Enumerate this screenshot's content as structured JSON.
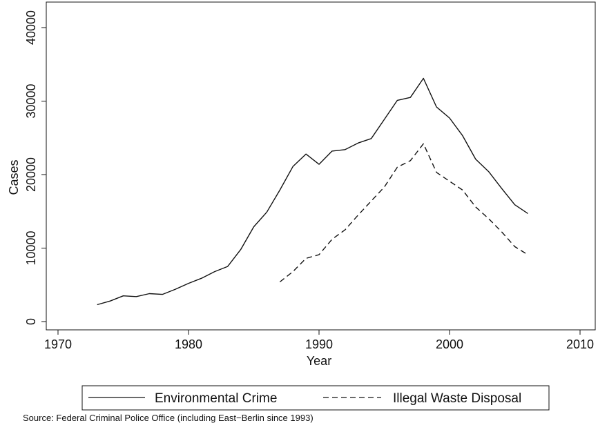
{
  "chart_data": {
    "type": "line",
    "title": "",
    "xlabel": "Year",
    "ylabel": "Cases",
    "xlim": [
      1970,
      2010
    ],
    "ylim": [
      0,
      40000
    ],
    "x_ticks": [
      1970,
      1980,
      1990,
      2000,
      2010
    ],
    "y_ticks": [
      0,
      10000,
      20000,
      30000,
      40000
    ],
    "grid": false,
    "legend_position": "bottom",
    "series": [
      {
        "name": "Environmental Crime",
        "style": "solid",
        "color": "#111111",
        "x": [
          1973,
          1974,
          1975,
          1976,
          1977,
          1978,
          1979,
          1980,
          1981,
          1982,
          1983,
          1984,
          1985,
          1986,
          1987,
          1988,
          1989,
          1990,
          1991,
          1992,
          1993,
          1994,
          1995,
          1996,
          1997,
          1998,
          1999,
          2000,
          2001,
          2002,
          2003,
          2004,
          2005,
          2006
        ],
        "values": [
          2300,
          2800,
          3500,
          3400,
          3800,
          3700,
          4400,
          5200,
          5900,
          6800,
          7500,
          9800,
          12900,
          14900,
          17900,
          21100,
          22800,
          21400,
          23200,
          23400,
          24300,
          24900,
          27500,
          30100,
          30500,
          33100,
          29200,
          27700,
          25300,
          22100,
          20400,
          18100,
          15900,
          14700
        ]
      },
      {
        "name": "Illegal Waste Disposal",
        "style": "dashed",
        "color": "#111111",
        "x": [
          1987,
          1988,
          1989,
          1990,
          1991,
          1992,
          1993,
          1994,
          1995,
          1996,
          1997,
          1998,
          1999,
          2000,
          2001,
          2002,
          2003,
          2004,
          2005,
          2006
        ],
        "values": [
          5400,
          6800,
          8600,
          9100,
          11200,
          12500,
          14500,
          16400,
          18300,
          21000,
          21900,
          24200,
          20300,
          19100,
          17900,
          15600,
          14000,
          12200,
          10200,
          9100
        ]
      }
    ],
    "source": "Source: Federal Criminal Police Office (including East−Berlin since 1993)"
  }
}
